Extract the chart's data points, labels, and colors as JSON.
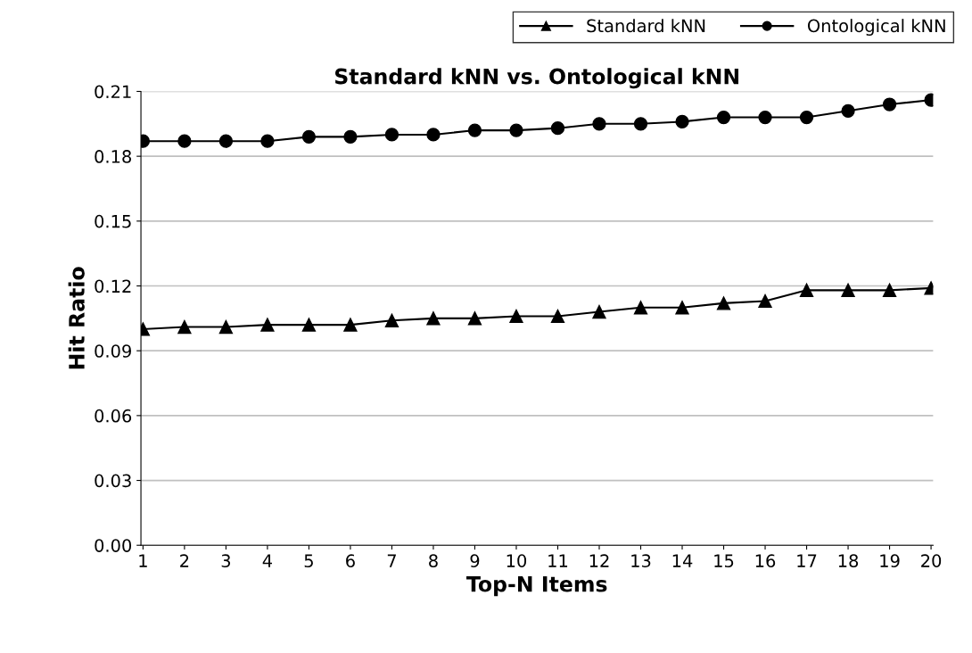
{
  "chart_data": {
    "type": "line",
    "title": "Standard kNN vs. Ontological kNN",
    "xlabel": "Top-N Items",
    "ylabel": "Hit Ratio",
    "categories": [
      "1",
      "2",
      "3",
      "4",
      "5",
      "6",
      "7",
      "8",
      "9",
      "10",
      "11",
      "12",
      "13",
      "14",
      "15",
      "16",
      "17",
      "18",
      "19",
      "20"
    ],
    "series": [
      {
        "name": "Standard kNN",
        "color": "#000000",
        "marker": "triangle",
        "values": [
          0.1,
          0.101,
          0.101,
          0.102,
          0.102,
          0.102,
          0.104,
          0.105,
          0.105,
          0.106,
          0.106,
          0.108,
          0.11,
          0.11,
          0.112,
          0.113,
          0.118,
          0.118,
          0.118,
          0.119
        ]
      },
      {
        "name": "Ontological kNN",
        "color": "#000000",
        "marker": "circle",
        "values": [
          0.187,
          0.187,
          0.187,
          0.187,
          0.189,
          0.189,
          0.19,
          0.19,
          0.192,
          0.192,
          0.193,
          0.195,
          0.195,
          0.196,
          0.198,
          0.198,
          0.198,
          0.201,
          0.204,
          0.206
        ]
      }
    ],
    "ylim": [
      0,
      0.21
    ],
    "yticks": [
      {
        "value": 0,
        "label": "0.00"
      },
      {
        "value": 0.03,
        "label": "0.03"
      },
      {
        "value": 0.06,
        "label": "0.06"
      },
      {
        "value": 0.09,
        "label": "0.09"
      },
      {
        "value": 0.12,
        "label": "0.12"
      },
      {
        "value": 0.15,
        "label": "0.15"
      },
      {
        "value": 0.18,
        "label": "0.18"
      },
      {
        "value": 0.21,
        "label": "0.21"
      }
    ],
    "grid": "y",
    "legend": "top right",
    "line_style": "solid"
  }
}
